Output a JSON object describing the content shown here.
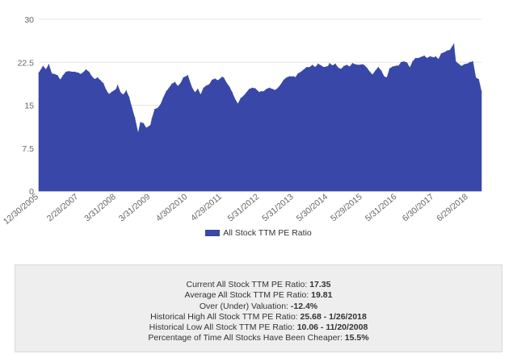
{
  "chart_data": {
    "type": "area",
    "series": [
      {
        "name": "All Stock TTM PE Ratio",
        "color": "#3947a8"
      }
    ],
    "ylim": [
      0,
      30
    ],
    "yticks": [
      0,
      7.5,
      15,
      22.5,
      30
    ],
    "x_tick_labels": [
      "12/30/2005",
      "2/28/2007",
      "3/31/2008",
      "3/31/2009",
      "4/30/2010",
      "4/29/2011",
      "5/31/2012",
      "5/31/2013",
      "5/30/2014",
      "5/29/2015",
      "5/31/2016",
      "6/30/2017",
      "6/29/2018"
    ],
    "x_range": [
      "12/30/2005",
      "11/2018"
    ],
    "grid": "horizontal",
    "legend_position": "bottom",
    "points": [
      [
        "12/30/2005",
        20.6
      ],
      [
        "2/2006",
        21.8
      ],
      [
        "3/2006",
        21.2
      ],
      [
        "4/2006",
        22.1
      ],
      [
        "5/2006",
        20.5
      ],
      [
        "6/2006",
        20.4
      ],
      [
        "7/2006",
        20.2
      ],
      [
        "8/2006",
        19.4
      ],
      [
        "9/2006",
        20.2
      ],
      [
        "10/2006",
        20.8
      ],
      [
        "11/2006",
        20.9
      ],
      [
        "12/2006",
        20.8
      ],
      [
        "1/2007",
        20.8
      ],
      [
        "2/28/2007",
        20.6
      ],
      [
        "3/2007",
        20.4
      ],
      [
        "4/2007",
        20.7
      ],
      [
        "5/2007",
        21.2
      ],
      [
        "6/2007",
        20.8
      ],
      [
        "7/2007",
        20.0
      ],
      [
        "8/2007",
        19.5
      ],
      [
        "9/2007",
        19.8
      ],
      [
        "10/2007",
        19.3
      ],
      [
        "11/2007",
        18.8
      ],
      [
        "12/2007",
        17.6
      ],
      [
        "1/2008",
        16.9
      ],
      [
        "2/2008",
        17.3
      ],
      [
        "3/31/2008",
        17.8
      ],
      [
        "4/2008",
        18.5
      ],
      [
        "5/2008",
        17.2
      ],
      [
        "6/2008",
        16.8
      ],
      [
        "7/2008",
        17.5
      ],
      [
        "8/2008",
        16.4
      ],
      [
        "9/2008",
        14.5
      ],
      [
        "10/2008",
        12.8
      ],
      [
        "11/20/2008",
        10.06
      ],
      [
        "12/2008",
        12.0
      ],
      [
        "1/2009",
        11.8
      ],
      [
        "2/2009",
        11.0
      ],
      [
        "3/31/2009",
        11.5
      ],
      [
        "4/2009",
        12.6
      ],
      [
        "5/2009",
        14.3
      ],
      [
        "6/2009",
        14.5
      ],
      [
        "7/2009",
        15.1
      ],
      [
        "8/2009",
        16.3
      ],
      [
        "9/2009",
        17.4
      ],
      [
        "10/2009",
        18.0
      ],
      [
        "11/2009",
        18.7
      ],
      [
        "12/2009",
        19.0
      ],
      [
        "1/2010",
        18.3
      ],
      [
        "2/2010",
        18.8
      ],
      [
        "3/2010",
        19.8
      ],
      [
        "4/30/2010",
        20.2
      ],
      [
        "5/2010",
        19.4
      ],
      [
        "6/2010",
        18.0
      ],
      [
        "7/2010",
        17.2
      ],
      [
        "8/2010",
        17.8
      ],
      [
        "9/2010",
        16.8
      ],
      [
        "10/2010",
        18.0
      ],
      [
        "11/2010",
        18.4
      ],
      [
        "12/2010",
        18.6
      ],
      [
        "1/2011",
        19.4
      ],
      [
        "2/2011",
        19.6
      ],
      [
        "3/2011",
        19.3
      ],
      [
        "4/29/2011",
        19.9
      ],
      [
        "5/2011",
        19.8
      ],
      [
        "6/2011",
        18.9
      ],
      [
        "7/2011",
        18.2
      ],
      [
        "8/2011",
        17.2
      ],
      [
        "9/2011",
        16.0
      ],
      [
        "10/2011",
        15.2
      ],
      [
        "11/2011",
        16.2
      ],
      [
        "12/2011",
        16.6
      ],
      [
        "1/2012",
        17.2
      ],
      [
        "2/2012",
        17.8
      ],
      [
        "3/2012",
        18.0
      ],
      [
        "4/2012",
        17.9
      ],
      [
        "5/31/2012",
        17.2
      ],
      [
        "6/2012",
        17.4
      ],
      [
        "7/2012",
        17.4
      ],
      [
        "8/2012",
        17.8
      ],
      [
        "9/2012",
        18.0
      ],
      [
        "10/2012",
        17.8
      ],
      [
        "11/2012",
        17.6
      ],
      [
        "12/2012",
        18.0
      ],
      [
        "1/2013",
        18.6
      ],
      [
        "2/2013",
        19.4
      ],
      [
        "3/2013",
        19.8
      ],
      [
        "4/2013",
        20.0
      ],
      [
        "5/31/2013",
        20.0
      ],
      [
        "6/2013",
        19.8
      ],
      [
        "7/2013",
        20.5
      ],
      [
        "8/2013",
        20.8
      ],
      [
        "9/2013",
        21.2
      ],
      [
        "10/2013",
        21.6
      ],
      [
        "11/2013",
        21.6
      ],
      [
        "12/2013",
        22.0
      ],
      [
        "1/2014",
        21.6
      ],
      [
        "2/2014",
        22.2
      ],
      [
        "3/2014",
        21.9
      ],
      [
        "4/2014",
        21.6
      ],
      [
        "5/30/2014",
        21.8
      ],
      [
        "6/2014",
        22.3
      ],
      [
        "7/2014",
        21.9
      ],
      [
        "8/2014",
        22.2
      ],
      [
        "9/2014",
        21.5
      ],
      [
        "10/2014",
        21.3
      ],
      [
        "11/2014",
        21.8
      ],
      [
        "12/2014",
        22.0
      ],
      [
        "1/2015",
        21.7
      ],
      [
        "2/2015",
        22.3
      ],
      [
        "3/2015",
        22.1
      ],
      [
        "4/2015",
        22.0
      ],
      [
        "5/29/2015",
        22.1
      ],
      [
        "6/2015",
        22.0
      ],
      [
        "7/2015",
        21.5
      ],
      [
        "8/2015",
        20.8
      ],
      [
        "9/2015",
        20.3
      ],
      [
        "10/2015",
        21.0
      ],
      [
        "11/2015",
        21.6
      ],
      [
        "12/2015",
        21.0
      ],
      [
        "1/2016",
        20.0
      ],
      [
        "2/2016",
        19.8
      ],
      [
        "3/2016",
        21.4
      ],
      [
        "4/2016",
        21.7
      ],
      [
        "5/31/2016",
        21.9
      ],
      [
        "6/2016",
        21.8
      ],
      [
        "7/2016",
        22.5
      ],
      [
        "8/2016",
        22.6
      ],
      [
        "9/2016",
        22.4
      ],
      [
        "10/2016",
        21.5
      ],
      [
        "11/2016",
        22.6
      ],
      [
        "12/2016",
        23.2
      ],
      [
        "1/2017",
        23.2
      ],
      [
        "2/2017",
        23.4
      ],
      [
        "3/2017",
        23.6
      ],
      [
        "4/2017",
        23.2
      ],
      [
        "5/2017",
        23.5
      ],
      [
        "6/30/2017",
        23.3
      ],
      [
        "7/2017",
        23.5
      ],
      [
        "8/2017",
        23.0
      ],
      [
        "9/2017",
        24.0
      ],
      [
        "10/2017",
        24.2
      ],
      [
        "11/2017",
        24.5
      ],
      [
        "12/2017",
        24.6
      ],
      [
        "1/26/2018",
        25.68
      ],
      [
        "2/2018",
        22.6
      ],
      [
        "3/2018",
        22.2
      ],
      [
        "4/2018",
        21.8
      ],
      [
        "5/2018",
        22.1
      ],
      [
        "6/29/2018",
        22.3
      ],
      [
        "7/2018",
        22.5
      ],
      [
        "8/2018",
        22.6
      ],
      [
        "9/2018",
        19.8
      ],
      [
        "10/2018",
        19.5
      ],
      [
        "11/2018",
        17.35
      ]
    ]
  },
  "stats": {
    "lines": [
      {
        "label": "Current All Stock TTM PE Ratio:",
        "value": "17.35"
      },
      {
        "label": "Average All Stock TTM PE Ratio:",
        "value": "19.81"
      },
      {
        "label": "Over (Under) Valuation:",
        "value": "-12.4%"
      },
      {
        "label": "Historical High All Stock TTM PE Ratio:",
        "value": "25.68 - 1/26/2018"
      },
      {
        "label": "Historical Low All Stock TTM PE Ratio:",
        "value": "10.06 - 11/20/2008"
      },
      {
        "label": "Percentage of Time All Stocks Have Been Cheaper:",
        "value": "15.5%"
      }
    ]
  }
}
